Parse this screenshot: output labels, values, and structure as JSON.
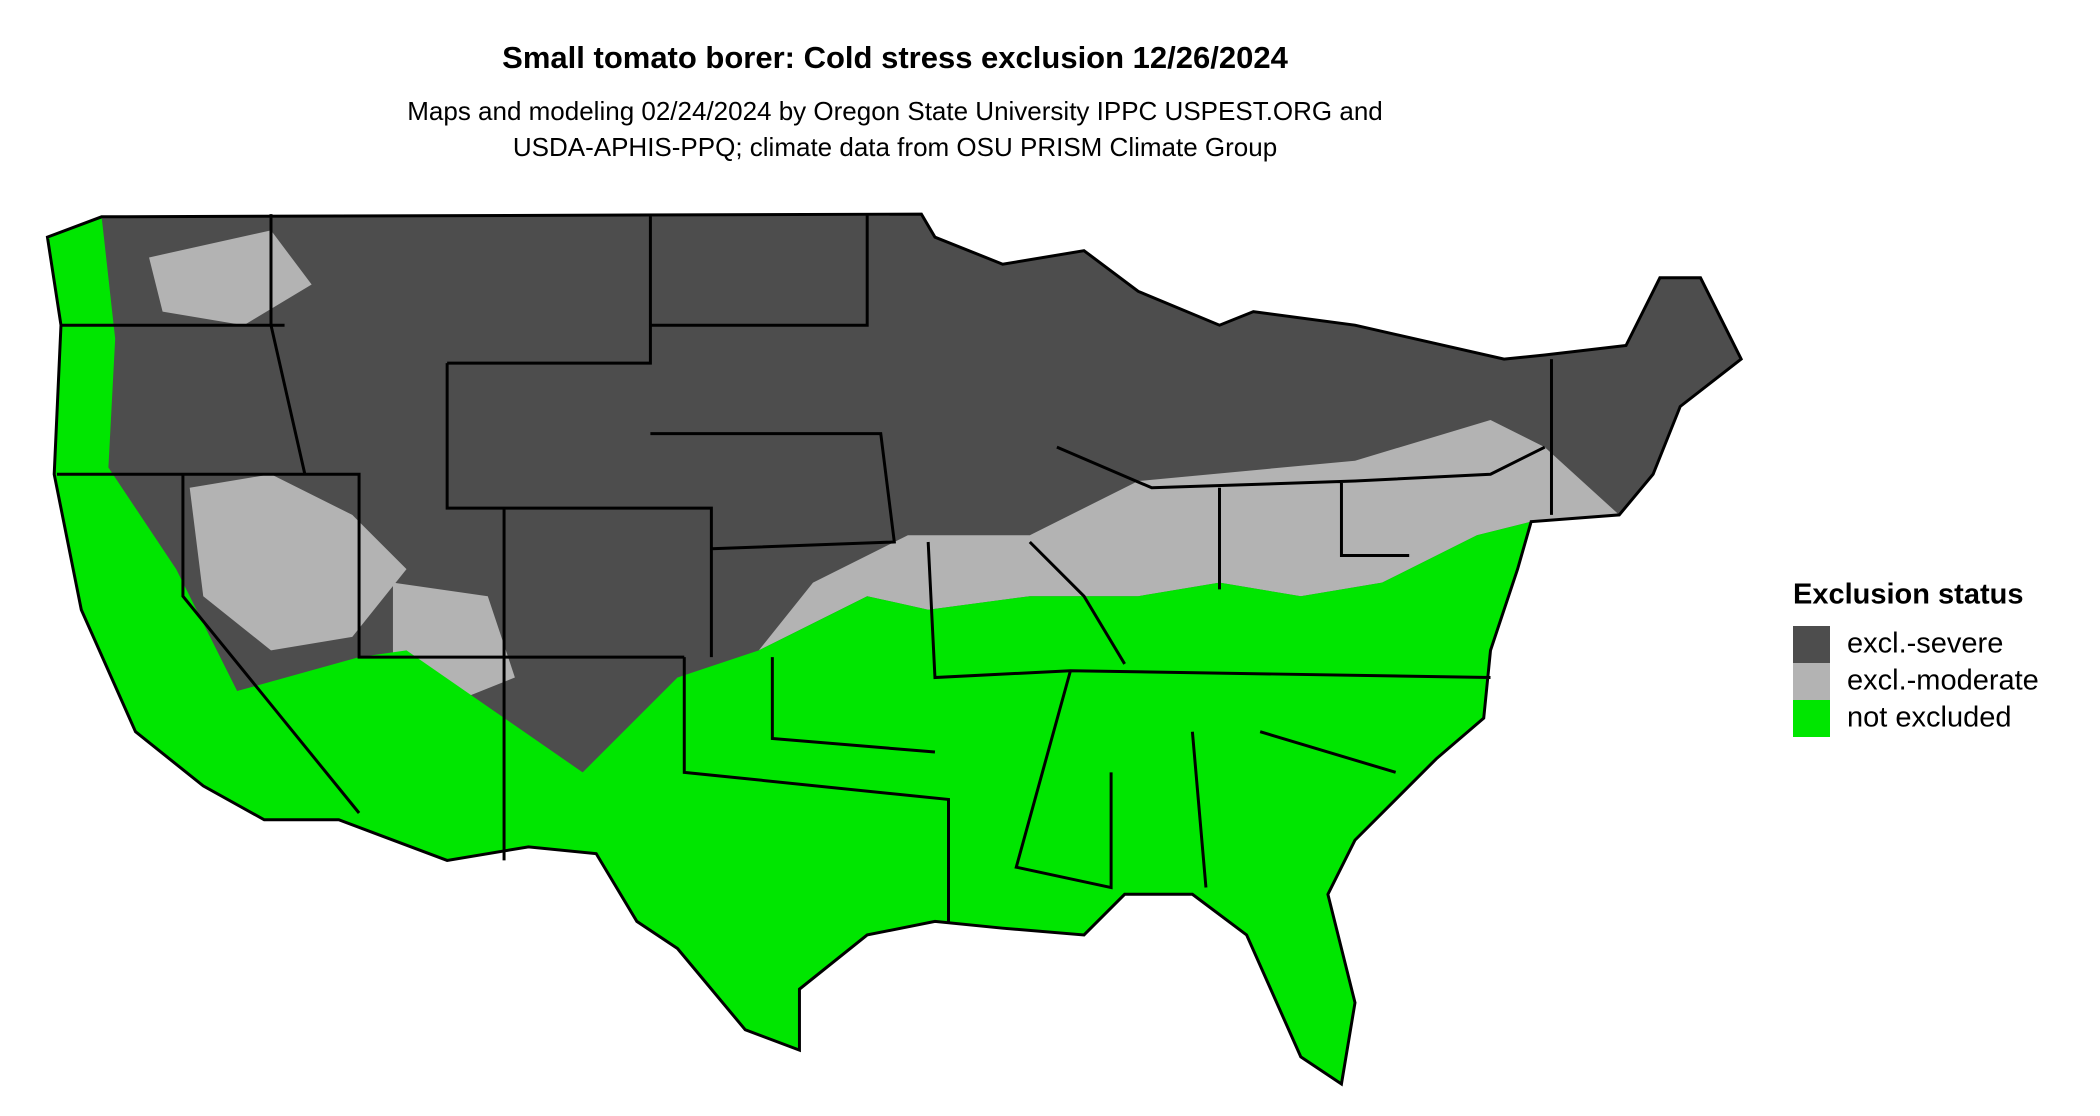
{
  "title": "Small tomato borer: Cold stress exclusion 12/26/2024",
  "subtitle": [
    "Maps and modeling 02/24/2024 by Oregon State University IPPC USPEST.ORG and",
    "USDA-APHIS-PPQ; climate data from OSU PRISM Climate Group"
  ],
  "legend": {
    "title": "Exclusion status",
    "items": [
      {
        "label": "excl.-severe",
        "color": "#4d4d4d"
      },
      {
        "label": "excl.-moderate",
        "color": "#b3b3b3"
      },
      {
        "label": "not excluded",
        "color": "#00e600"
      }
    ]
  }
}
